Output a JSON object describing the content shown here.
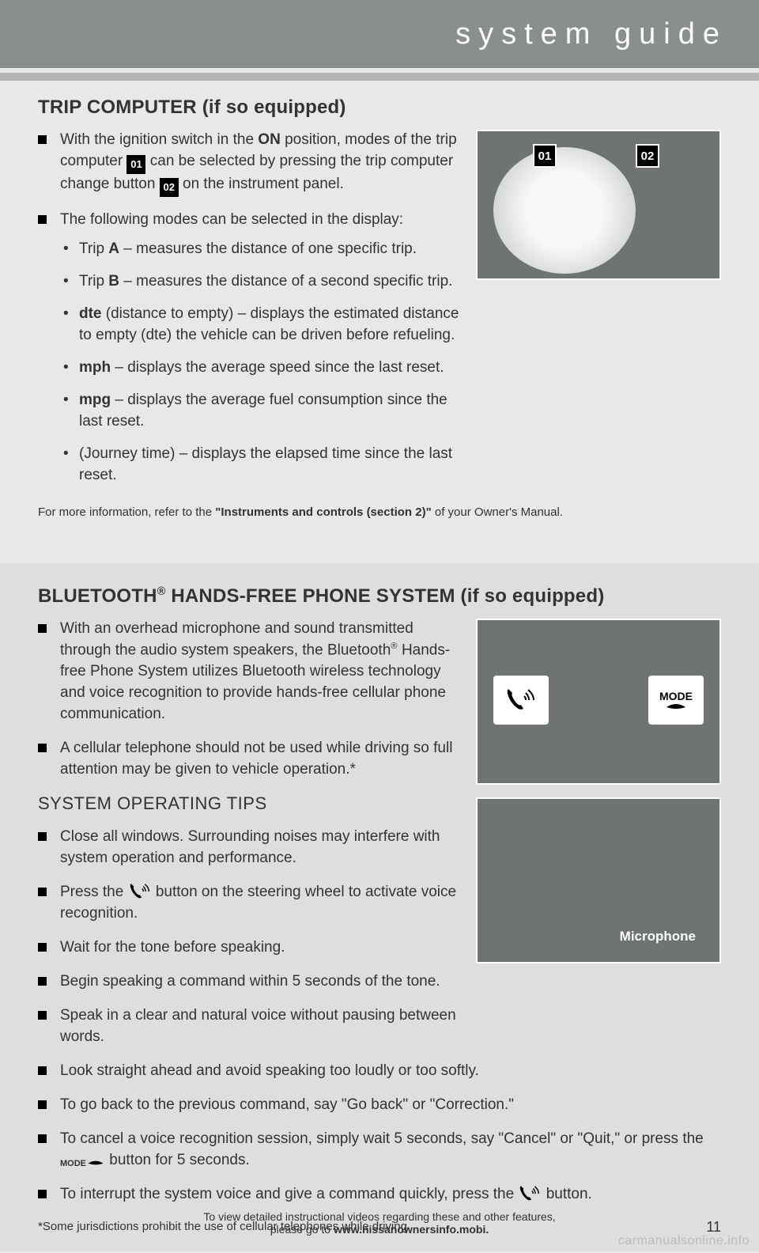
{
  "header": {
    "title": "system guide"
  },
  "section1": {
    "heading": "TRIP COMPUTER (if so equipped)",
    "items": [
      {
        "pre": "With the ignition switch in the",
        "b1": "ON",
        "mid": "position, modes of the trip computer",
        "badge1": "01",
        "mid2": "can be selected by pressing the trip computer change button",
        "badge2": "02",
        "post": "on the instrument panel."
      },
      {
        "text": "The following modes can be selected in the display:"
      }
    ],
    "sub": [
      {
        "pre": "Trip",
        "b": "A",
        "post": "– measures the distance of one specific trip."
      },
      {
        "pre": "Trip",
        "b": "B",
        "post": "– measures the distance of a second specific trip."
      },
      {
        "b": "dte",
        "post": "(distance to empty) – displays the estimated distance to empty (dte) the vehicle can be driven before refueling."
      },
      {
        "b": "mph",
        "post": "– displays the average speed since the last reset."
      },
      {
        "b": "mpg",
        "post": "– displays the average fuel consumption since the last reset."
      },
      {
        "post": "(Journey time) – displays the elapsed time since the last reset."
      }
    ],
    "note_pre": "For more information, refer to the",
    "note_b": "\"Instruments and controls (section 2)\"",
    "note_post": "of your Owner's Manual.",
    "callout1": "01",
    "callout2": "02"
  },
  "section2": {
    "heading": "BLUETOOTH® HANDS-FREE PHONE SYSTEM (if so equipped)",
    "intro": [
      "With an overhead microphone and sound transmitted through the audio system speakers, the Bluetooth® Hands-free Phone System utilizes Bluetooth wireless technology and voice recognition to provide hands-free cellular phone communication.",
      "A cellular telephone should not be used while driving so full attention may be given to vehicle operation.*"
    ],
    "tips_heading": "SYSTEM OPERATING TIPS",
    "tips": [
      "Close all windows. Surrounding noises may interfere with system operation and performance.",
      "__PHONE__",
      "Wait for the tone before speaking.",
      "Begin speaking a command within 5 seconds of the tone.",
      "Speak in a clear and natural voice without pausing between words.",
      "Look straight ahead and avoid speaking too loudly or too softly.",
      "To go back to the previous command, say \"Go back\" or \"Correction.\"",
      "__MODE__",
      "__PHONE2__"
    ],
    "tip_phone_pre": "Press the",
    "tip_phone_post": "button on the steering wheel to activate voice recognition.",
    "tip_mode_pre": "To cancel a voice recognition session, simply wait 5 seconds, say \"Cancel\" or \"Quit,\" or press the",
    "tip_mode_post": "button for 5 seconds.",
    "tip_phone2_pre": "To interrupt the system voice and give a command quickly, press the",
    "tip_phone2_post": "button.",
    "footnote": "*Some jurisdictions prohibit the use of cellular telephones while driving.",
    "mic_label": "Microphone",
    "mode_label": "MODE"
  },
  "footer": {
    "line1": "To view detailed instructional videos regarding these and other features,",
    "line2_pre": "please go to",
    "line2_b": "www.nissanownersinfo.mobi.",
    "page": "11"
  },
  "watermark": "carmanualsonline.info"
}
